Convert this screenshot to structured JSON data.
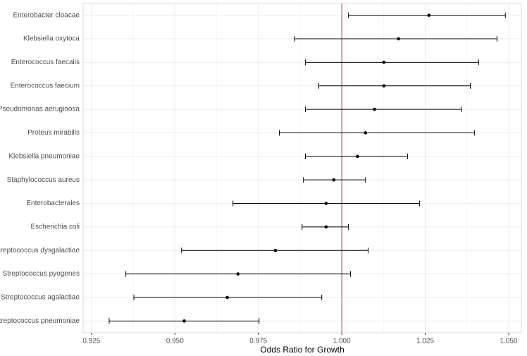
{
  "chart_data": {
    "type": "forest",
    "xlabel": "Odds Ratio for Growth",
    "categories": [
      "Enterobacter cloacae",
      "Klebsiella oxytoca",
      "Enterococcus faecalis",
      "Enterococcus faecium",
      "Pseudomonas aeruginosa",
      "Proteus mirabilis",
      "Klebsiella pneumoniae",
      "Staphylococcus aureus",
      "Enterobacterales",
      "Escherichia coli",
      "Streptococcus dysgalactiae",
      "Streptococcus pyogenes",
      "Streptococcus agalactiae",
      "Streptococcus pneumoniae"
    ],
    "values": [
      1.0261,
      1.017,
      1.0126,
      1.0126,
      1.0098,
      1.0071,
      1.0047,
      0.9976,
      0.9953,
      0.9953,
      0.9801,
      0.9689,
      0.9657,
      0.9528
    ],
    "lower": [
      1.002,
      0.9858,
      0.9891,
      0.9931,
      0.9891,
      0.9813,
      0.9891,
      0.9885,
      0.9674,
      0.9881,
      0.952,
      0.9353,
      0.9377,
      0.9303
    ],
    "upper": [
      1.049,
      1.0465,
      1.041,
      1.0385,
      1.0358,
      1.0398,
      1.0197,
      1.0071,
      1.0233,
      1.002,
      1.0079,
      1.0026,
      0.994,
      0.9752
    ],
    "color": "#000000",
    "reference_line": 1,
    "reference_color": "#e0474c",
    "xlim": [
      0.9225,
      1.0538
    ],
    "xticks": [
      {
        "value": 0.925,
        "label": "0.925"
      },
      {
        "value": 0.95,
        "label": "0.950"
      },
      {
        "value": 0.975,
        "label": "0.975"
      },
      {
        "value": 1,
        "label": "1.000"
      },
      {
        "value": 1.025,
        "label": "1.025"
      },
      {
        "value": 1.05,
        "label": "1.050"
      }
    ],
    "grid": true
  }
}
